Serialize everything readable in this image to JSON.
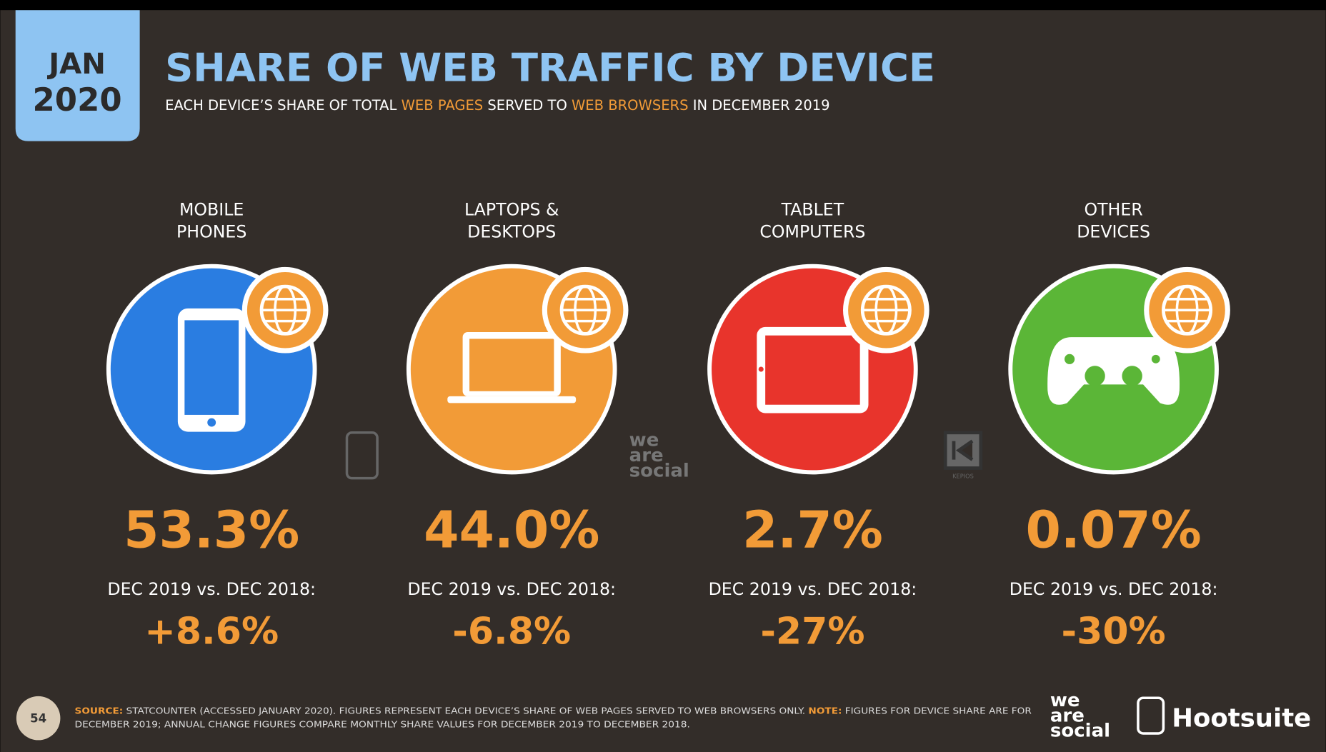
{
  "header": {
    "date_month": "JAN",
    "date_year": "2020",
    "title": "SHARE OF WEB TRAFFIC BY DEVICE",
    "subtitle": [
      "EACH DEVICE’S SHARE OF TOTAL ",
      "WEB PAGES",
      " SERVED TO ",
      "WEB BROWSERS",
      " IN DECEMBER 2019"
    ]
  },
  "devices": [
    {
      "label": [
        "MOBILE",
        "PHONES"
      ],
      "share": "53.3%",
      "change_label": "DEC 2019 vs. DEC 2018:",
      "change": "+8.6%"
    },
    {
      "label": [
        "LAPTOPS &",
        "DESKTOPS"
      ],
      "share": "44.0%",
      "change_label": "DEC 2019 vs. DEC 2018:",
      "change": "-6.8%"
    },
    {
      "label": [
        "TABLET",
        "COMPUTERS"
      ],
      "share": "2.7%",
      "change_label": "DEC 2019 vs. DEC 2018:",
      "change": "-27%"
    },
    {
      "label": [
        "OTHER",
        "DEVICES"
      ],
      "share": "0.07%",
      "change_label": "DEC 2019 vs. DEC 2018:",
      "change": "-30%"
    }
  ],
  "watermarks": {
    "we_are_social": [
      "we",
      "are",
      "social"
    ],
    "kepios": "KEPIOS"
  },
  "footer": {
    "page": "54",
    "source_line1": [
      "SOURCE:",
      " STATCOUNTER (ACCESSED JANUARY 2020). FIGURES REPRESENT EACH DEVICE’S SHARE OF WEB PAGES SERVED TO WEB BROWSERS ONLY. ",
      "NOTE:",
      " FIGURES FOR DEVICE SHARE ARE FOR"
    ],
    "source_line2": "DECEMBER 2019; ANNUAL CHANGE FIGURES COMPARE MONTHLY SHARE VALUES FOR DECEMBER 2019 TO DECEMBER 2018.",
    "logo_was": [
      "we",
      "are",
      "social"
    ],
    "logo_hootsuite": "Hootsuite"
  }
}
